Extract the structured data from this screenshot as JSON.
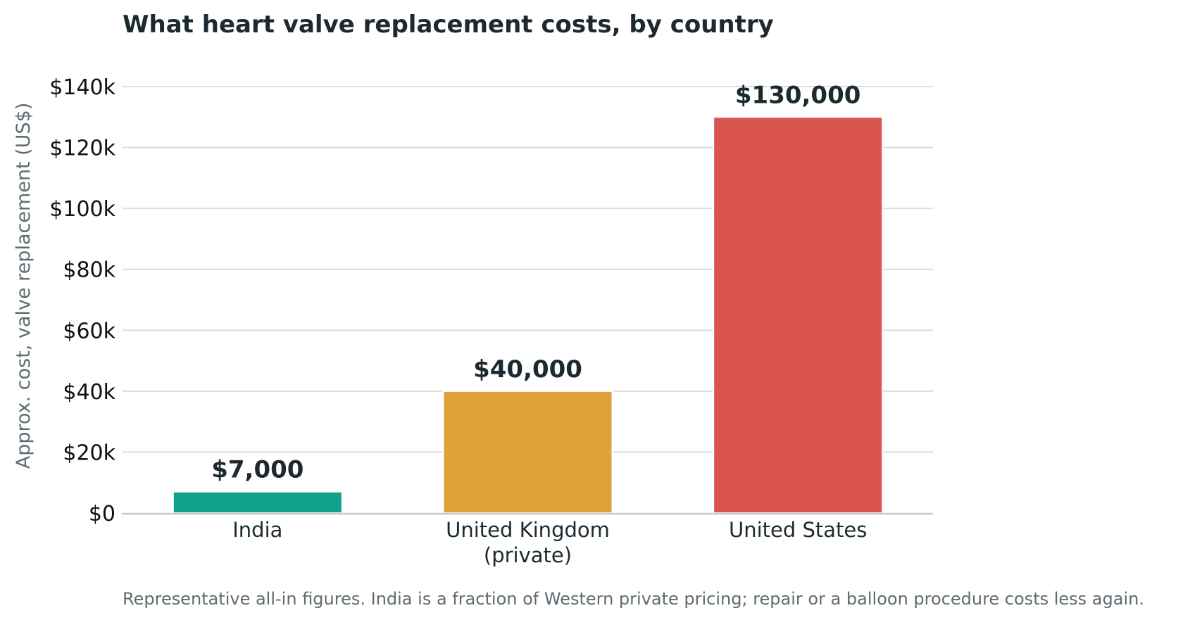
{
  "chart_data": {
    "type": "bar",
    "title": "What heart valve replacement costs, by country",
    "xlabel": "",
    "ylabel": "Approx. cost, valve replacement (US$)",
    "categories": [
      [
        "India"
      ],
      [
        "United Kingdom",
        "(private)"
      ],
      [
        "United States"
      ]
    ],
    "values": [
      7000,
      40000,
      130000
    ],
    "value_labels": [
      "$7,000",
      "$40,000",
      "$130,000"
    ],
    "colors": [
      "#10a38a",
      "#e0a03a",
      "#da5450"
    ],
    "ylim": [
      0,
      140000
    ],
    "yticks": [
      0,
      20000,
      40000,
      60000,
      80000,
      100000,
      120000,
      140000
    ],
    "ytick_labels": [
      "$0",
      "$20k",
      "$40k",
      "$60k",
      "$80k",
      "$100k",
      "$120k",
      "$140k"
    ],
    "grid": true,
    "legend": "none",
    "footnote": "Representative all-in figures. India is a fraction of Western private pricing; repair or a balloon procedure costs less again."
  }
}
